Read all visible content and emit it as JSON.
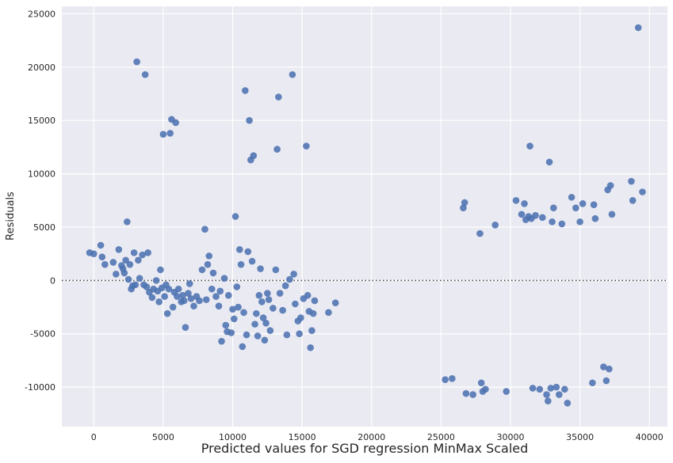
{
  "chart_data": {
    "type": "scatter",
    "title": "",
    "xlabel": "Predicted values for SGD regression MinMax Scaled",
    "ylabel": "Residuals",
    "xlim": [
      -2300,
      41300
    ],
    "ylim": [
      -13700,
      25700
    ],
    "xticks": [
      0,
      5000,
      10000,
      15000,
      20000,
      25000,
      30000,
      35000,
      40000
    ],
    "yticks": [
      -10000,
      -5000,
      0,
      5000,
      10000,
      15000,
      20000,
      25000
    ],
    "grid": true,
    "reference_line": {
      "y": 0,
      "style": "dotted"
    },
    "series": [
      {
        "color": "#4c72b0",
        "points": [
          [
            -300,
            2600
          ],
          [
            0,
            2500
          ],
          [
            500,
            3300
          ],
          [
            600,
            2200
          ],
          [
            800,
            1500
          ],
          [
            1400,
            1700
          ],
          [
            1600,
            600
          ],
          [
            1800,
            2900
          ],
          [
            2000,
            1400
          ],
          [
            2100,
            1100
          ],
          [
            2200,
            700
          ],
          [
            2300,
            1900
          ],
          [
            2400,
            5500
          ],
          [
            2500,
            100
          ],
          [
            2600,
            1500
          ],
          [
            2700,
            -800
          ],
          [
            2800,
            -500
          ],
          [
            2900,
            2600
          ],
          [
            3000,
            -400
          ],
          [
            3100,
            20500
          ],
          [
            3200,
            1900
          ],
          [
            3300,
            200
          ],
          [
            3500,
            2400
          ],
          [
            3600,
            -400
          ],
          [
            3700,
            19300
          ],
          [
            3800,
            -600
          ],
          [
            3900,
            2600
          ],
          [
            4000,
            -1100
          ],
          [
            4200,
            -1600
          ],
          [
            4300,
            -800
          ],
          [
            4500,
            0
          ],
          [
            4600,
            -1000
          ],
          [
            4700,
            -2000
          ],
          [
            4800,
            1000
          ],
          [
            4900,
            -700
          ],
          [
            5000,
            13700
          ],
          [
            5100,
            -1500
          ],
          [
            5200,
            -400
          ],
          [
            5300,
            -3100
          ],
          [
            5400,
            -800
          ],
          [
            5500,
            13800
          ],
          [
            5600,
            15100
          ],
          [
            5700,
            -2500
          ],
          [
            5800,
            -1100
          ],
          [
            5900,
            14800
          ],
          [
            6000,
            -1500
          ],
          [
            6100,
            -800
          ],
          [
            6300,
            -2000
          ],
          [
            6400,
            -1400
          ],
          [
            6500,
            -1900
          ],
          [
            6600,
            -4400
          ],
          [
            6800,
            -1200
          ],
          [
            6900,
            -300
          ],
          [
            7000,
            -1700
          ],
          [
            7200,
            -2400
          ],
          [
            7400,
            -1500
          ],
          [
            7600,
            -1900
          ],
          [
            7800,
            1000
          ],
          [
            8000,
            4800
          ],
          [
            8100,
            -1800
          ],
          [
            8200,
            1500
          ],
          [
            8300,
            2300
          ],
          [
            8500,
            -800
          ],
          [
            8600,
            700
          ],
          [
            8800,
            -1500
          ],
          [
            9000,
            -2400
          ],
          [
            9100,
            -1000
          ],
          [
            9200,
            -5700
          ],
          [
            9400,
            200
          ],
          [
            9500,
            -4200
          ],
          [
            9600,
            -4800
          ],
          [
            9700,
            -1400
          ],
          [
            9900,
            -4900
          ],
          [
            10000,
            -2700
          ],
          [
            10100,
            -3600
          ],
          [
            10200,
            6000
          ],
          [
            10300,
            -600
          ],
          [
            10400,
            -2500
          ],
          [
            10500,
            2900
          ],
          [
            10600,
            1500
          ],
          [
            10700,
            -6200
          ],
          [
            10800,
            -3000
          ],
          [
            10900,
            17800
          ],
          [
            11000,
            -5100
          ],
          [
            11100,
            2700
          ],
          [
            11200,
            15000
          ],
          [
            11300,
            11300
          ],
          [
            11400,
            1800
          ],
          [
            11500,
            11700
          ],
          [
            11600,
            -4100
          ],
          [
            11700,
            -3100
          ],
          [
            11800,
            -5200
          ],
          [
            11900,
            -1400
          ],
          [
            12000,
            1100
          ],
          [
            12100,
            -2000
          ],
          [
            12200,
            -3500
          ],
          [
            12300,
            -5600
          ],
          [
            12400,
            -4000
          ],
          [
            12500,
            -1200
          ],
          [
            12600,
            -1800
          ],
          [
            12700,
            -4700
          ],
          [
            12900,
            -2600
          ],
          [
            13100,
            1000
          ],
          [
            13200,
            12300
          ],
          [
            13300,
            17200
          ],
          [
            13400,
            -1200
          ],
          [
            13600,
            -2800
          ],
          [
            13800,
            -500
          ],
          [
            13900,
            -5100
          ],
          [
            14100,
            100
          ],
          [
            14300,
            19300
          ],
          [
            14400,
            600
          ],
          [
            14500,
            -2200
          ],
          [
            14700,
            -3800
          ],
          [
            14800,
            -5000
          ],
          [
            14900,
            -3500
          ],
          [
            15100,
            -1700
          ],
          [
            15300,
            12600
          ],
          [
            15400,
            -1400
          ],
          [
            15500,
            -2900
          ],
          [
            15600,
            -6300
          ],
          [
            15700,
            -4700
          ],
          [
            15800,
            -3100
          ],
          [
            15900,
            -1900
          ],
          [
            16900,
            -3000
          ],
          [
            17400,
            -2100
          ],
          [
            25300,
            -9300
          ],
          [
            25800,
            -9200
          ],
          [
            26600,
            6800
          ],
          [
            26700,
            7300
          ],
          [
            26800,
            -10600
          ],
          [
            27300,
            -10700
          ],
          [
            27800,
            4400
          ],
          [
            27900,
            -9600
          ],
          [
            28000,
            -10400
          ],
          [
            28200,
            -10200
          ],
          [
            28900,
            5200
          ],
          [
            29700,
            -10400
          ],
          [
            30400,
            7500
          ],
          [
            30800,
            6200
          ],
          [
            31000,
            7200
          ],
          [
            31100,
            5700
          ],
          [
            31300,
            6000
          ],
          [
            31400,
            12600
          ],
          [
            31500,
            5800
          ],
          [
            31600,
            -10100
          ],
          [
            31800,
            6100
          ],
          [
            32100,
            -10200
          ],
          [
            32300,
            5900
          ],
          [
            32600,
            -10700
          ],
          [
            32700,
            -11300
          ],
          [
            32800,
            11100
          ],
          [
            32900,
            -10100
          ],
          [
            33000,
            5500
          ],
          [
            33100,
            6800
          ],
          [
            33300,
            -10000
          ],
          [
            33500,
            -10700
          ],
          [
            33700,
            5300
          ],
          [
            33900,
            -10200
          ],
          [
            34100,
            -11500
          ],
          [
            34400,
            7800
          ],
          [
            34700,
            6800
          ],
          [
            35000,
            5500
          ],
          [
            35200,
            7200
          ],
          [
            35900,
            -9600
          ],
          [
            36000,
            7100
          ],
          [
            36100,
            5800
          ],
          [
            36700,
            -8100
          ],
          [
            36900,
            -9400
          ],
          [
            37000,
            8500
          ],
          [
            37100,
            -8300
          ],
          [
            37200,
            8900
          ],
          [
            37300,
            6200
          ],
          [
            38700,
            9300
          ],
          [
            38800,
            7500
          ],
          [
            39200,
            23700
          ],
          [
            39500,
            8300
          ]
        ]
      }
    ]
  }
}
